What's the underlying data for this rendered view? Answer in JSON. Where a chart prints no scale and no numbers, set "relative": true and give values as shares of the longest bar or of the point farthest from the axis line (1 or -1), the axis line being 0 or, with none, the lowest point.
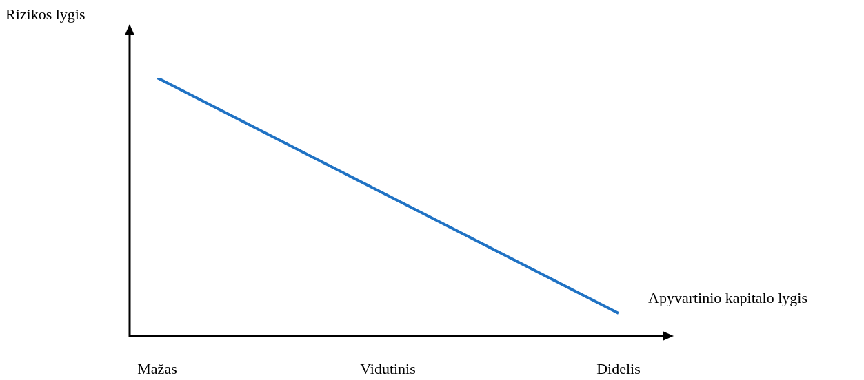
{
  "chart_data": {
    "type": "line",
    "relative": true,
    "xlabel": "Apyvartinio kapitalo lygis",
    "ylabel": "Rizikos lygis",
    "categories": [
      "Mažas",
      "Vidutinis",
      "Didelis"
    ],
    "series": [
      {
        "color": "#1f72c4",
        "values": [
          1,
          0.544,
          0.088
        ]
      }
    ],
    "grid": false,
    "legend": false,
    "marker": "none",
    "line_style": "solid"
  }
}
